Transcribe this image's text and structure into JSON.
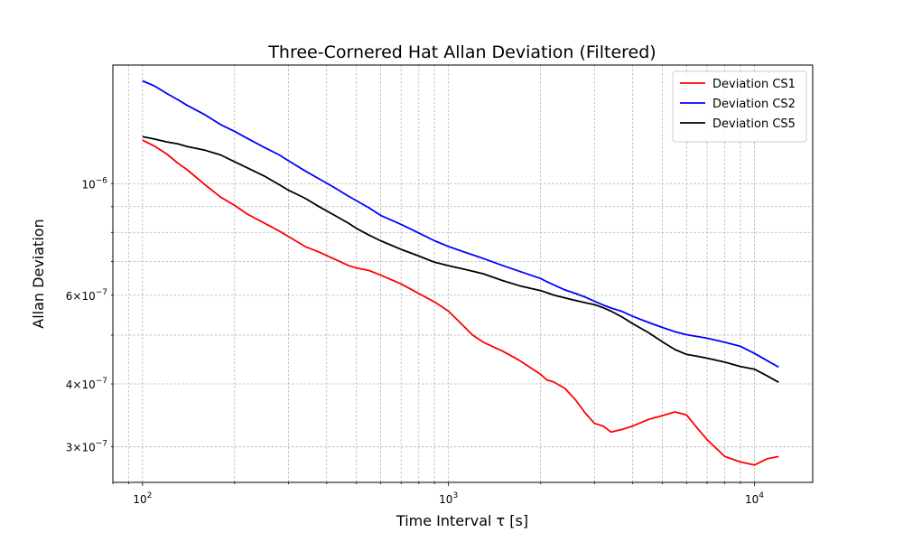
{
  "chart_data": {
    "type": "line",
    "title": "Three-Cornered Hat Allan Deviation (Filtered)",
    "xlabel": "Time Interval τ [s]",
    "ylabel": "Allan Deviation",
    "xscale": "log",
    "yscale": "log",
    "xlim": [
      80,
      15500
    ],
    "ylim": [
      2.55e-07,
      1.72e-06
    ],
    "grid": true,
    "legend_position": "top-right",
    "x_tick_labels": [
      {
        "value": 100,
        "base": "10",
        "exp": "2"
      },
      {
        "value": 1000,
        "base": "10",
        "exp": "3"
      },
      {
        "value": 10000,
        "base": "10",
        "exp": "4"
      }
    ],
    "y_tick_labels": [
      {
        "value": 3e-07,
        "coef": "3",
        "base": "10",
        "exp": "−7"
      },
      {
        "value": 4e-07,
        "coef": "4",
        "base": "10",
        "exp": "−7"
      },
      {
        "value": 6e-07,
        "coef": "6",
        "base": "10",
        "exp": "−7"
      },
      {
        "value": 1e-06,
        "coef": "",
        "base": "10",
        "exp": "−6"
      }
    ],
    "x": [
      100,
      110,
      120,
      130,
      140,
      160,
      180,
      200,
      220,
      250,
      280,
      300,
      340,
      380,
      420,
      470,
      500,
      550,
      600,
      700,
      800,
      900,
      1000,
      1100,
      1200,
      1300,
      1500,
      1700,
      2000,
      2100,
      2200,
      2400,
      2600,
      2800,
      3000,
      3200,
      3400,
      3700,
      4000,
      4500,
      5000,
      5500,
      6000,
      6500,
      7000,
      8000,
      9000,
      10000,
      11000,
      12000
    ],
    "series": [
      {
        "name": "Deviation CS1",
        "color": "#ff0000",
        "values": [
          1.22e-06,
          1.185e-06,
          1.145e-06,
          1.1e-06,
          1.065e-06,
          9.95e-07,
          9.4e-07,
          9.05e-07,
          8.7e-07,
          8.35e-07,
          8.05e-07,
          7.85e-07,
          7.5e-07,
          7.3e-07,
          7.1e-07,
          6.88e-07,
          6.8e-07,
          6.72e-07,
          6.58e-07,
          6.32e-07,
          6.05e-07,
          5.82e-07,
          5.58e-07,
          5.27e-07,
          5e-07,
          4.84e-07,
          4.65e-07,
          4.46e-07,
          4.18e-07,
          4.07e-07,
          4.04e-07,
          3.92e-07,
          3.72e-07,
          3.5e-07,
          3.34e-07,
          3.3e-07,
          3.21e-07,
          3.25e-07,
          3.3e-07,
          3.4e-07,
          3.46e-07,
          3.52e-07,
          3.47e-07,
          3.27e-07,
          3.1e-07,
          2.87e-07,
          2.8e-07,
          2.76e-07,
          2.84e-07,
          2.87e-07
        ]
      },
      {
        "name": "Deviation CS2",
        "color": "#0000ff",
        "values": [
          1.6e-06,
          1.56e-06,
          1.51e-06,
          1.47e-06,
          1.43e-06,
          1.37e-06,
          1.31e-06,
          1.27e-06,
          1.23e-06,
          1.18e-06,
          1.14e-06,
          1.11e-06,
          1.06e-06,
          1.02e-06,
          9.85e-07,
          9.45e-07,
          9.25e-07,
          8.95e-07,
          8.65e-07,
          8.3e-07,
          7.98e-07,
          7.7e-07,
          7.5e-07,
          7.35e-07,
          7.22e-07,
          7.1e-07,
          6.88e-07,
          6.7e-07,
          6.48e-07,
          6.38e-07,
          6.3e-07,
          6.15e-07,
          6.05e-07,
          5.95e-07,
          5.84e-07,
          5.74e-07,
          5.66e-07,
          5.57e-07,
          5.45e-07,
          5.3e-07,
          5.18e-07,
          5.08e-07,
          5.01e-07,
          4.97e-07,
          4.93e-07,
          4.84e-07,
          4.75e-07,
          4.6e-07,
          4.45e-07,
          4.32e-07
        ]
      },
      {
        "name": "Deviation CS5",
        "color": "#000000",
        "values": [
          1.24e-06,
          1.225e-06,
          1.21e-06,
          1.2e-06,
          1.185e-06,
          1.165e-06,
          1.14e-06,
          1.105e-06,
          1.075e-06,
          1.035e-06,
          9.95e-07,
          9.7e-07,
          9.35e-07,
          8.98e-07,
          8.68e-07,
          8.35e-07,
          8.15e-07,
          7.9e-07,
          7.7e-07,
          7.4e-07,
          7.18e-07,
          6.98e-07,
          6.87e-07,
          6.78e-07,
          6.7e-07,
          6.62e-07,
          6.42e-07,
          6.27e-07,
          6.13e-07,
          6.07e-07,
          6.01e-07,
          5.93e-07,
          5.86e-07,
          5.8e-07,
          5.75e-07,
          5.67e-07,
          5.58e-07,
          5.43e-07,
          5.27e-07,
          5.06e-07,
          4.85e-07,
          4.68e-07,
          4.58e-07,
          4.54e-07,
          4.5e-07,
          4.42e-07,
          4.33e-07,
          4.28e-07,
          4.15e-07,
          4.03e-07
        ]
      }
    ]
  }
}
